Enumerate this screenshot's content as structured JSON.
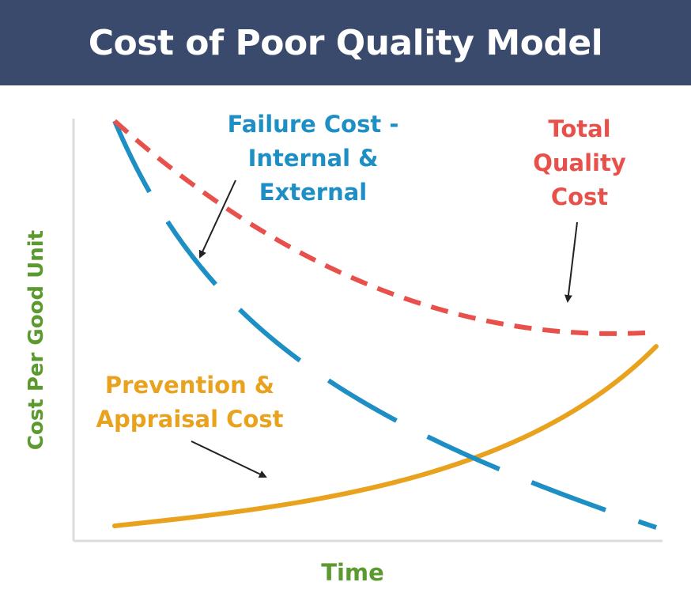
{
  "header": {
    "title": "Cost of Poor Quality Model"
  },
  "axes": {
    "xlabel": "Time",
    "ylabel": "Cost Per Good Unit"
  },
  "curves": {
    "failure": {
      "lines": [
        "Failure Cost -",
        "Internal &",
        "External"
      ],
      "color": "#1d8fc4",
      "style": "dashed"
    },
    "total": {
      "lines": [
        "Total",
        "Quality",
        "Cost"
      ],
      "color": "#e8514b",
      "style": "dashed"
    },
    "prevention": {
      "lines": [
        "Prevention &",
        "Appraisal Cost"
      ],
      "color": "#e9a21d",
      "style": "solid"
    }
  },
  "colors": {
    "header_bg": "#3a4a6d",
    "axis": "#dcdcdc",
    "arrow": "#222222",
    "axis_label": "#5b9a2f"
  }
}
